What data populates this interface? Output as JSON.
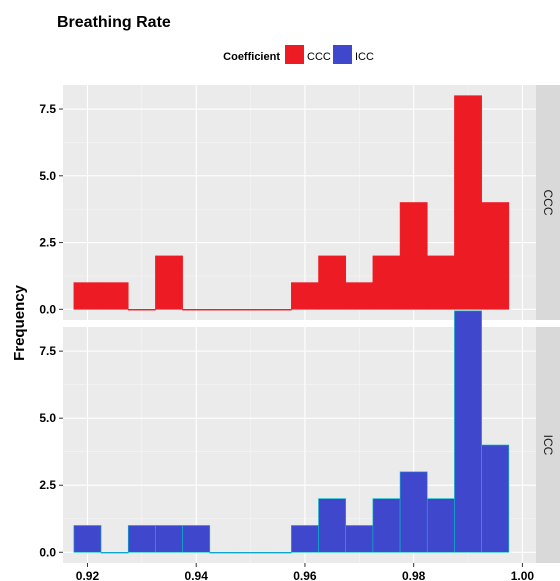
{
  "chart_data": {
    "type": "bar",
    "title": "Breathing Rate",
    "xlabel": "",
    "ylabel": "Frequency",
    "legend": {
      "title": "Coefficient",
      "placement": "top",
      "entries": [
        {
          "label": "CCC",
          "color": "#ED1C24"
        },
        {
          "label": "ICC",
          "color": "#3F48CC"
        }
      ]
    },
    "xlim": [
      0.9155,
      1.0025
    ],
    "x_ticks": [
      0.92,
      0.94,
      0.96,
      0.98,
      1.0
    ],
    "x_tick_labels": [
      "0.92",
      "0.94",
      "0.96",
      "0.98",
      "1.00"
    ],
    "ylim": [
      -0.4,
      8.4
    ],
    "y_ticks": [
      0,
      2.5,
      5,
      7.5
    ],
    "y_tick_labels": [
      "0.0",
      "2.5",
      "5.0",
      "7.5"
    ],
    "grid": true,
    "bin_width": 0.005,
    "bin_centers": [
      0.92,
      0.925,
      0.93,
      0.935,
      0.94,
      0.945,
      0.95,
      0.955,
      0.96,
      0.965,
      0.97,
      0.975,
      0.98,
      0.985,
      0.99,
      0.995
    ],
    "facets": [
      {
        "label": "CCC",
        "fill": "#ED1C24",
        "outline": "#ED1C24",
        "values": [
          1,
          1,
          0,
          2,
          0,
          0,
          0,
          0,
          1,
          2,
          1,
          2,
          4,
          2,
          8,
          4
        ]
      },
      {
        "label": "ICC",
        "fill": "#3F48CC",
        "outline": "#00BFC4",
        "values": [
          1,
          0,
          1,
          1,
          1,
          0,
          0,
          0,
          1,
          2,
          1,
          2,
          3,
          2,
          9,
          4
        ]
      }
    ]
  }
}
